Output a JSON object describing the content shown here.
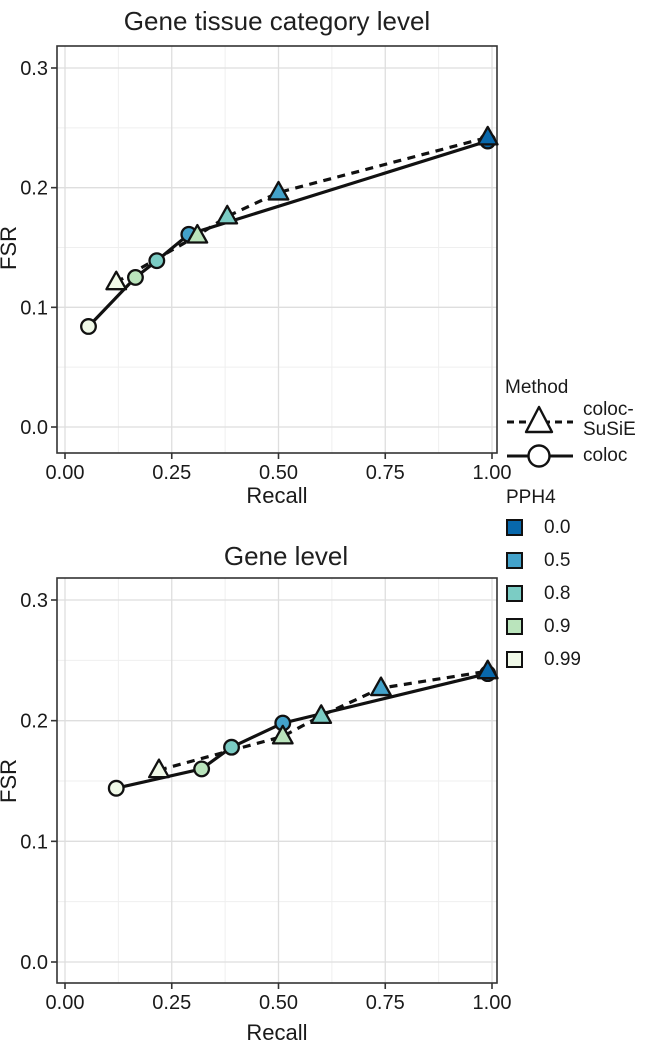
{
  "figure": {
    "background": "#ffffff",
    "text_color": "#1a1a1a",
    "title_color": "#1f1f1f",
    "line_color": "#111111",
    "panel_border_color": "#333333",
    "grid_major_color": "#dedede",
    "grid_minor_color": "#efefef",
    "tick_color": "#333333"
  },
  "legend": {
    "method": {
      "title": "Method",
      "items": [
        {
          "label": "coloc-SuSiE",
          "label_lines": [
            "coloc-",
            "SuSiE"
          ],
          "marker": "triangle",
          "linestyle": "dashed"
        },
        {
          "label": "coloc",
          "label_lines": [
            "coloc",
            ""
          ],
          "marker": "circle",
          "linestyle": "solid"
        }
      ]
    },
    "pph4": {
      "title": "PPH4",
      "items": [
        {
          "label": "0.0",
          "color": "#0868ac"
        },
        {
          "label": "0.5",
          "color": "#43a2ca"
        },
        {
          "label": "0.8",
          "color": "#7bccc4"
        },
        {
          "label": "0.9",
          "color": "#bae4bc"
        },
        {
          "label": "0.99",
          "color": "#f0f9e8"
        }
      ]
    }
  },
  "chart_data": [
    {
      "type": "line",
      "title": "Gene tissue category level",
      "xlabel": "Recall",
      "ylabel": "FSR",
      "xlim": [
        0,
        1
      ],
      "ylim": [
        0,
        0.3
      ],
      "xticks": [
        {
          "v": 0,
          "label": "0.00"
        },
        {
          "v": 0.25,
          "label": "0.25"
        },
        {
          "v": 0.5,
          "label": "0.50"
        },
        {
          "v": 0.75,
          "label": "0.75"
        },
        {
          "v": 1,
          "label": "1.00"
        }
      ],
      "yticks": [
        {
          "v": 0,
          "label": "0.0"
        },
        {
          "v": 0.1,
          "label": "0.1"
        },
        {
          "v": 0.2,
          "label": "0.2"
        },
        {
          "v": 0.3,
          "label": "0.3"
        }
      ],
      "xminor": [
        0.125,
        0.375,
        0.625,
        0.875
      ],
      "yminor": [
        0.05,
        0.15,
        0.25
      ],
      "grid": true,
      "series": [
        {
          "name": "coloc",
          "marker": "circle",
          "linestyle": "solid",
          "points": [
            {
              "x": 0.055,
              "y": 0.084,
              "pph4": "0.99"
            },
            {
              "x": 0.165,
              "y": 0.125,
              "pph4": "0.9"
            },
            {
              "x": 0.215,
              "y": 0.139,
              "pph4": "0.8"
            },
            {
              "x": 0.29,
              "y": 0.161,
              "pph4": "0.5"
            },
            {
              "x": 0.99,
              "y": 0.239,
              "pph4": "0.0"
            }
          ]
        },
        {
          "name": "coloc-SuSiE",
          "marker": "triangle",
          "linestyle": "dashed",
          "points": [
            {
              "x": 0.12,
              "y": 0.121,
              "pph4": "0.99"
            },
            {
              "x": 0.31,
              "y": 0.16,
              "pph4": "0.9"
            },
            {
              "x": 0.38,
              "y": 0.176,
              "pph4": "0.8"
            },
            {
              "x": 0.5,
              "y": 0.196,
              "pph4": "0.5"
            },
            {
              "x": 0.99,
              "y": 0.242,
              "pph4": "0.0"
            }
          ]
        }
      ]
    },
    {
      "type": "line",
      "title": "Gene level",
      "xlabel": "Recall",
      "ylabel": "FSR",
      "xlim": [
        0,
        1
      ],
      "ylim": [
        0,
        0.3
      ],
      "xticks": [
        {
          "v": 0,
          "label": "0.00"
        },
        {
          "v": 0.25,
          "label": "0.25"
        },
        {
          "v": 0.5,
          "label": "0.50"
        },
        {
          "v": 0.75,
          "label": "0.75"
        },
        {
          "v": 1,
          "label": "1.00"
        }
      ],
      "yticks": [
        {
          "v": 0,
          "label": "0.0"
        },
        {
          "v": 0.1,
          "label": "0.1"
        },
        {
          "v": 0.2,
          "label": "0.2"
        },
        {
          "v": 0.3,
          "label": "0.3"
        }
      ],
      "xminor": [
        0.125,
        0.375,
        0.625,
        0.875
      ],
      "yminor": [
        0.05,
        0.15,
        0.25
      ],
      "grid": true,
      "series": [
        {
          "name": "coloc",
          "marker": "circle",
          "linestyle": "solid",
          "points": [
            {
              "x": 0.12,
              "y": 0.144,
              "pph4": "0.99"
            },
            {
              "x": 0.32,
              "y": 0.16,
              "pph4": "0.9"
            },
            {
              "x": 0.39,
              "y": 0.178,
              "pph4": "0.8"
            },
            {
              "x": 0.51,
              "y": 0.198,
              "pph4": "0.5"
            },
            {
              "x": 0.99,
              "y": 0.239,
              "pph4": "0.0"
            }
          ]
        },
        {
          "name": "coloc-SuSiE",
          "marker": "triangle",
          "linestyle": "dashed",
          "points": [
            {
              "x": 0.22,
              "y": 0.159,
              "pph4": "0.99"
            },
            {
              "x": 0.51,
              "y": 0.187,
              "pph4": "0.9"
            },
            {
              "x": 0.6,
              "y": 0.204,
              "pph4": "0.8"
            },
            {
              "x": 0.74,
              "y": 0.227,
              "pph4": "0.5"
            },
            {
              "x": 0.99,
              "y": 0.241,
              "pph4": "0.0"
            }
          ]
        }
      ]
    }
  ]
}
